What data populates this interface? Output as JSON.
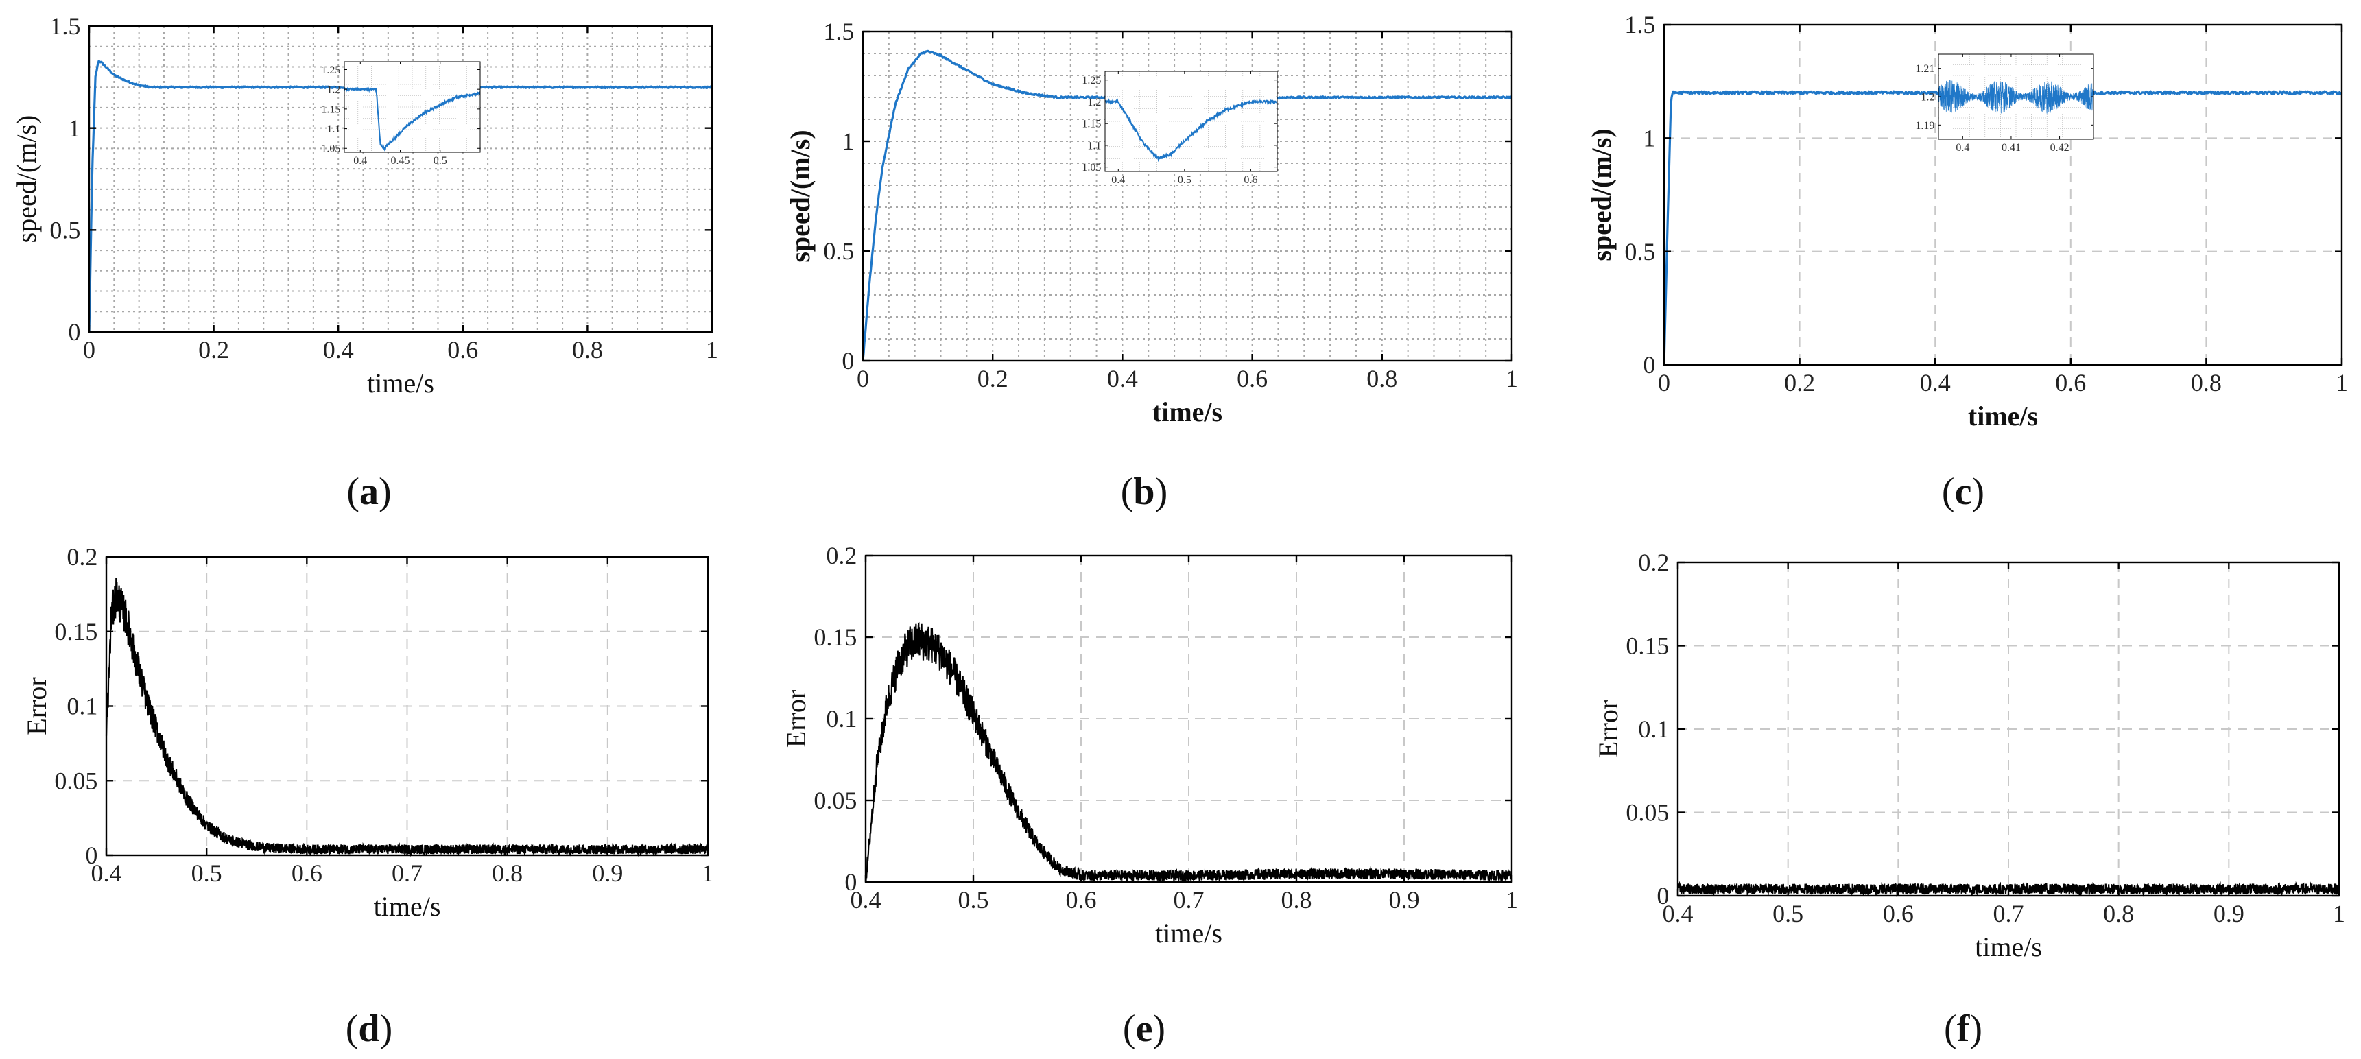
{
  "colors": {
    "speed_line": "#1f77c8",
    "error_line": "#000000",
    "grid": "#bfbfbf",
    "axis": "#000000"
  },
  "chart_data": [
    {
      "id": "a",
      "type": "line",
      "caption_label": "a",
      "xlabel": "time/s",
      "ylabel": "speed/(m/s)",
      "label_weight": "normal",
      "xlim": [
        0,
        1
      ],
      "ylim": [
        0,
        1.5
      ],
      "xticks": [
        0,
        0.2,
        0.4,
        0.6,
        0.8,
        1
      ],
      "xtick_labels": [
        "0",
        "0.2",
        "0.4",
        "0.6",
        "0.8",
        "1"
      ],
      "yticks": [
        0,
        0.5,
        1,
        1.5
      ],
      "ytick_labels": [
        "0",
        "0.5",
        "1",
        "1.5"
      ],
      "grid": "dotted-minor",
      "series": [
        {
          "name": "speed",
          "x": [
            0,
            0.005,
            0.01,
            0.015,
            0.02,
            0.04,
            0.06,
            0.08,
            0.1,
            0.15,
            0.2,
            0.3,
            0.4,
            0.42,
            0.425,
            0.44,
            0.46,
            0.5,
            0.55,
            0.6,
            0.62,
            0.64,
            0.7,
            0.8,
            0.9,
            1.0
          ],
          "y": [
            0,
            0.8,
            1.25,
            1.33,
            1.32,
            1.26,
            1.23,
            1.21,
            1.2,
            1.2,
            1.2,
            1.2,
            1.2,
            1.2,
            1.05,
            1.08,
            1.12,
            1.16,
            1.18,
            1.19,
            1.2,
            1.2,
            1.2,
            1.2,
            1.2,
            1.2
          ]
        }
      ],
      "inset": {
        "xlim": [
          0.38,
          0.55
        ],
        "ylim": [
          1.04,
          1.27
        ],
        "xticks": [
          0.4,
          0.45,
          0.5
        ],
        "xtick_labels": [
          "0.4",
          "0.45",
          "0.5"
        ],
        "yticks": [
          1.05,
          1.1,
          1.15,
          1.2,
          1.25
        ],
        "ytick_labels": [
          "1.05",
          "1.1",
          "1.15",
          "1.2",
          "1.25"
        ],
        "x": [
          0.38,
          0.4,
          0.42,
          0.425,
          0.43,
          0.44,
          0.46,
          0.48,
          0.5,
          0.52,
          0.55
        ],
        "y": [
          1.2,
          1.2,
          1.2,
          1.06,
          1.05,
          1.07,
          1.11,
          1.14,
          1.16,
          1.18,
          1.19
        ]
      }
    },
    {
      "id": "b",
      "type": "line",
      "caption_label": "b",
      "xlabel": "time/s",
      "ylabel": "speed/(m/s)",
      "label_weight": "bold",
      "xlim": [
        0,
        1
      ],
      "ylim": [
        0,
        1.5
      ],
      "xticks": [
        0,
        0.2,
        0.4,
        0.6,
        0.8,
        1
      ],
      "xtick_labels": [
        "0",
        "0.2",
        "0.4",
        "0.6",
        "0.8",
        "1"
      ],
      "yticks": [
        0,
        0.5,
        1,
        1.5
      ],
      "ytick_labels": [
        "0",
        "0.5",
        "1",
        "1.5"
      ],
      "grid": "dotted-minor",
      "series": [
        {
          "name": "speed",
          "x": [
            0,
            0.01,
            0.02,
            0.03,
            0.05,
            0.07,
            0.09,
            0.1,
            0.12,
            0.15,
            0.2,
            0.25,
            0.3,
            0.4,
            0.42,
            0.44,
            0.46,
            0.48,
            0.5,
            0.55,
            0.6,
            0.65,
            0.7,
            0.8,
            0.9,
            1.0
          ],
          "y": [
            0,
            0.35,
            0.65,
            0.88,
            1.17,
            1.33,
            1.4,
            1.41,
            1.39,
            1.34,
            1.26,
            1.22,
            1.2,
            1.2,
            1.14,
            1.09,
            1.07,
            1.08,
            1.11,
            1.16,
            1.19,
            1.2,
            1.2,
            1.2,
            1.2,
            1.2
          ]
        }
      ],
      "inset": {
        "xlim": [
          0.38,
          0.64
        ],
        "ylim": [
          1.04,
          1.27
        ],
        "xticks": [
          0.4,
          0.5,
          0.6
        ],
        "xtick_labels": [
          "0.4",
          "0.5",
          "0.6"
        ],
        "yticks": [
          1.05,
          1.1,
          1.15,
          1.2,
          1.25
        ],
        "ytick_labels": [
          "1.05",
          "1.1",
          "1.15",
          "1.2",
          "1.25"
        ],
        "x": [
          0.38,
          0.4,
          0.42,
          0.44,
          0.46,
          0.48,
          0.5,
          0.53,
          0.56,
          0.6,
          0.64
        ],
        "y": [
          1.2,
          1.2,
          1.15,
          1.1,
          1.07,
          1.08,
          1.11,
          1.15,
          1.18,
          1.2,
          1.2
        ]
      }
    },
    {
      "id": "c",
      "type": "line",
      "caption_label": "c",
      "xlabel": "time/s",
      "ylabel": "speed/(m/s)",
      "label_weight": "bold",
      "xlim": [
        0,
        1
      ],
      "ylim": [
        0,
        1.5
      ],
      "xticks": [
        0,
        0.2,
        0.4,
        0.6,
        0.8,
        1
      ],
      "xtick_labels": [
        "0",
        "0.2",
        "0.4",
        "0.6",
        "0.8",
        "1"
      ],
      "yticks": [
        0,
        0.5,
        1,
        1.5
      ],
      "ytick_labels": [
        "0",
        "0.5",
        "1",
        "1.5"
      ],
      "grid": "dashed",
      "series": [
        {
          "name": "speed",
          "x": [
            0,
            0.005,
            0.01,
            0.012,
            1.0
          ],
          "y": [
            0,
            0.6,
            1.15,
            1.2,
            1.2
          ]
        }
      ],
      "inset": {
        "xlim": [
          0.395,
          0.427
        ],
        "ylim": [
          1.185,
          1.215
        ],
        "xticks": [
          0.4,
          0.41,
          0.42
        ],
        "xtick_labels": [
          "0.4",
          "0.41",
          "0.42"
        ],
        "yticks": [
          1.19,
          1.2,
          1.21
        ],
        "ytick_labels": [
          "1.19",
          "1.2",
          "1.21"
        ],
        "noise_center": 1.2,
        "noise_amplitude": 0.006
      }
    },
    {
      "id": "d",
      "type": "line",
      "caption_label": "d",
      "xlabel": "time/s",
      "ylabel": "Error",
      "label_weight": "normal",
      "xlim": [
        0.4,
        1
      ],
      "ylim": [
        0,
        0.2
      ],
      "xticks": [
        0.4,
        0.5,
        0.6,
        0.7,
        0.8,
        0.9,
        1
      ],
      "xtick_labels": [
        "0.4",
        "0.5",
        "0.6",
        "0.7",
        "0.8",
        "0.9",
        "1"
      ],
      "yticks": [
        0,
        0.05,
        0.1,
        0.15,
        0.2
      ],
      "ytick_labels": [
        "0",
        "0.05",
        "0.1",
        "0.15",
        "0.2"
      ],
      "grid": "dashed",
      "series": [
        {
          "name": "error",
          "x": [
            0.4,
            0.405,
            0.41,
            0.42,
            0.43,
            0.44,
            0.46,
            0.48,
            0.5,
            0.52,
            0.54,
            0.56,
            0.6,
            0.7,
            0.8,
            0.9,
            1.0
          ],
          "y": [
            0.08,
            0.16,
            0.175,
            0.158,
            0.13,
            0.104,
            0.065,
            0.038,
            0.02,
            0.011,
            0.007,
            0.005,
            0.004,
            0.004,
            0.004,
            0.004,
            0.004
          ]
        }
      ]
    },
    {
      "id": "e",
      "type": "line",
      "caption_label": "e",
      "xlabel": "time/s",
      "ylabel": "Error",
      "label_weight": "normal",
      "xlim": [
        0.4,
        1
      ],
      "ylim": [
        0,
        0.2
      ],
      "xticks": [
        0.4,
        0.5,
        0.6,
        0.7,
        0.8,
        0.9,
        1
      ],
      "xtick_labels": [
        "0.4",
        "0.5",
        "0.6",
        "0.7",
        "0.8",
        "0.9",
        "1"
      ],
      "yticks": [
        0,
        0.05,
        0.1,
        0.15,
        0.2
      ],
      "ytick_labels": [
        "0",
        "0.05",
        "0.1",
        "0.15",
        "0.2"
      ],
      "grid": "dashed",
      "series": [
        {
          "name": "error",
          "x": [
            0.4,
            0.41,
            0.42,
            0.43,
            0.44,
            0.45,
            0.46,
            0.47,
            0.48,
            0.5,
            0.52,
            0.54,
            0.56,
            0.58,
            0.6,
            0.7,
            0.8,
            0.9,
            1.0
          ],
          "y": [
            0,
            0.07,
            0.11,
            0.133,
            0.145,
            0.148,
            0.146,
            0.14,
            0.13,
            0.103,
            0.073,
            0.045,
            0.022,
            0.008,
            0.004,
            0.004,
            0.005,
            0.005,
            0.004
          ]
        }
      ]
    },
    {
      "id": "f",
      "type": "line",
      "caption_label": "f",
      "xlabel": "time/s",
      "ylabel": "Error",
      "label_weight": "normal",
      "xlim": [
        0.4,
        1
      ],
      "ylim": [
        0,
        0.2
      ],
      "xticks": [
        0.4,
        0.5,
        0.6,
        0.7,
        0.8,
        0.9,
        1
      ],
      "xtick_labels": [
        "0.4",
        "0.5",
        "0.6",
        "0.7",
        "0.8",
        "0.9",
        "1"
      ],
      "yticks": [
        0,
        0.05,
        0.1,
        0.15,
        0.2
      ],
      "ytick_labels": [
        "0",
        "0.05",
        "0.1",
        "0.15",
        "0.2"
      ],
      "grid": "dashed",
      "series": [
        {
          "name": "error",
          "x": [
            0.4,
            1.0
          ],
          "y": [
            0.004,
            0.004
          ]
        }
      ]
    }
  ]
}
